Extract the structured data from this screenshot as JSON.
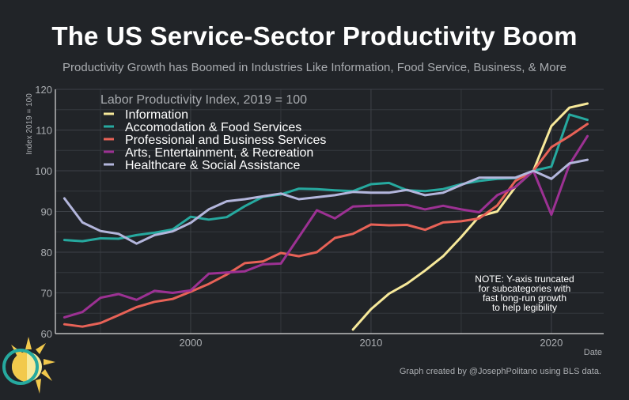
{
  "chart_data": {
    "type": "line",
    "title": "The US Service-Sector Productivity Boom",
    "subtitle": "Productivity Growth has Boomed in Industries Like Information, Food Service, Business, & More",
    "legend_title": "Labor Productivity Index, 2019 = 100",
    "xlabel": "Date",
    "ylabel": "Index 2019 = 100",
    "xlim": [
      1992.5,
      2022.9
    ],
    "ylim": [
      60,
      120
    ],
    "x_ticks": [
      2000,
      2010,
      2020
    ],
    "y_ticks": [
      60,
      70,
      80,
      90,
      100,
      110,
      120
    ],
    "grid": true,
    "legend_position": "top-left",
    "note": [
      "NOTE: Y-axis truncated",
      "for subcategories with",
      "fast long-run growth",
      "to help legibility"
    ],
    "credit": "Graph created by @JosephPolitano using BLS data.",
    "series": [
      {
        "name": "Information",
        "color": "#f7e99a",
        "x": [
          2009,
          2010,
          2011,
          2012,
          2013,
          2014,
          2015,
          2016,
          2017,
          2018,
          2019,
          2020,
          2021,
          2022
        ],
        "values": [
          61,
          66,
          69.8,
          72.3,
          75.5,
          79,
          83.7,
          88.8,
          90,
          96,
          100,
          111,
          115.5,
          116.5
        ]
      },
      {
        "name": "Accomodation & Food Services",
        "color": "#26a99f",
        "x": [
          1993,
          1994,
          1995,
          1996,
          1997,
          1998,
          1999,
          2000,
          2001,
          2002,
          2003,
          2004,
          2005,
          2006,
          2007,
          2008,
          2009,
          2010,
          2011,
          2012,
          2013,
          2014,
          2015,
          2016,
          2017,
          2018,
          2019,
          2020,
          2021,
          2022
        ],
        "values": [
          83,
          82.7,
          83.4,
          83.3,
          84.2,
          84.8,
          85.6,
          88.7,
          88,
          88.6,
          91.3,
          93.6,
          94.2,
          95.6,
          95.5,
          95.2,
          95,
          96.7,
          97,
          95.2,
          95,
          95.5,
          96.7,
          97.5,
          98,
          98.2,
          100,
          101,
          113.8,
          112.5
        ]
      },
      {
        "name": "Professional and Business Services",
        "color": "#e86257",
        "x": [
          1993,
          1994,
          1995,
          1996,
          1997,
          1998,
          1999,
          2000,
          2001,
          2002,
          2003,
          2004,
          2005,
          2006,
          2007,
          2008,
          2009,
          2010,
          2011,
          2012,
          2013,
          2014,
          2015,
          2016,
          2017,
          2018,
          2019,
          2020,
          2021,
          2022
        ],
        "values": [
          62.3,
          61.7,
          62.6,
          64.5,
          66.5,
          67.8,
          68.5,
          70.3,
          72.2,
          74.5,
          77.3,
          77.7,
          79.8,
          79,
          80,
          83.5,
          84.5,
          86.8,
          86.6,
          86.7,
          85.5,
          87.3,
          87.6,
          88.3,
          91.5,
          97.5,
          100,
          105.8,
          108.5,
          111.5
        ]
      },
      {
        "name": "Arts, Entertainment, & Recreation",
        "color": "#9c3193",
        "x": [
          1993,
          1994,
          1995,
          1996,
          1997,
          1998,
          1999,
          2000,
          2001,
          2002,
          2003,
          2004,
          2005,
          2006,
          2007,
          2008,
          2009,
          2010,
          2011,
          2012,
          2013,
          2014,
          2015,
          2016,
          2017,
          2018,
          2019,
          2020,
          2021,
          2022
        ],
        "values": [
          64,
          65.3,
          68.8,
          69.7,
          68.3,
          70.5,
          70,
          70.6,
          74.7,
          75,
          75.3,
          77,
          77.2,
          83.7,
          90.3,
          88.3,
          91.2,
          91.4,
          91.5,
          91.6,
          90.5,
          91.4,
          90.5,
          89.8,
          94,
          96,
          100,
          89.2,
          101.5,
          108.5
        ]
      },
      {
        "name": "Healthcare & Social Assistance",
        "color": "#b3b6dc",
        "x": [
          1993,
          1994,
          1995,
          1996,
          1997,
          1998,
          1999,
          2000,
          2001,
          2002,
          2003,
          2004,
          2005,
          2006,
          2007,
          2008,
          2009,
          2010,
          2011,
          2012,
          2013,
          2014,
          2015,
          2016,
          2017,
          2018,
          2019,
          2020,
          2021,
          2022
        ],
        "values": [
          93.2,
          87.3,
          85.2,
          84.5,
          82.1,
          84.2,
          85.1,
          87.2,
          90.5,
          92.5,
          93,
          93.7,
          94.4,
          93,
          93.5,
          94,
          94.8,
          94.6,
          94.6,
          95.3,
          94,
          94.6,
          96.5,
          98.3,
          98.3,
          98.3,
          100,
          98,
          101.8,
          102.7
        ]
      }
    ]
  }
}
